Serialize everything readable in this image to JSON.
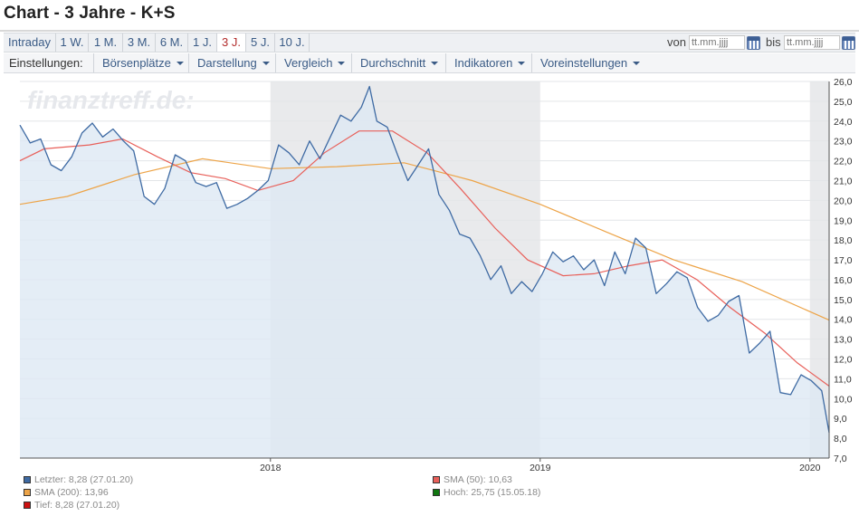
{
  "page": {
    "title": "Chart - 3 Jahre - K+S"
  },
  "toolbar": {
    "ranges": [
      "Intraday",
      "1 W.",
      "1 M.",
      "3 M.",
      "6 M.",
      "1 J.",
      "3 J.",
      "5 J.",
      "10 J."
    ],
    "active_range": "3 J.",
    "from_label": "von",
    "to_label": "bis",
    "from_placeholder": "tt.mm.jjjj",
    "to_placeholder": "tt.mm.jjjj"
  },
  "settings": {
    "label": "Einstellungen:",
    "menus": [
      "Börsenplätze",
      "Darstellung",
      "Vergleich",
      "Durchschnitt",
      "Indikatoren",
      "Voreinstellungen"
    ]
  },
  "colors": {
    "price_line": "#3e6aa3",
    "price_fill": "#dde8f4",
    "sma50": "#e8605a",
    "sma200": "#eda448",
    "shade": "#e9eaec",
    "low_marker": "#cc1111",
    "high_marker": "#117711"
  },
  "chart_data": {
    "type": "line",
    "watermark": "finanztreff.de:",
    "ylim": [
      7.0,
      26.0
    ],
    "y_ticks": [
      "26,0",
      "25,0",
      "24,0",
      "23,0",
      "22,0",
      "21,0",
      "20,0",
      "19,0",
      "18,0",
      "17,0",
      "16,0",
      "15,0",
      "14,0",
      "13,0",
      "12,0",
      "11,0",
      "10,0",
      "9,0",
      "8,0",
      "7,0"
    ],
    "x_domain": [
      "2017-01-27",
      "2020-01-27"
    ],
    "x_ticks": [
      {
        "label": "2018",
        "date": "2018-01-01"
      },
      {
        "label": "2019",
        "date": "2019-01-01"
      },
      {
        "label": "2020",
        "date": "2020-01-01"
      }
    ],
    "series": [
      {
        "name": "Letzter",
        "points": [
          [
            "2017-01-27",
            23.8
          ],
          [
            "2017-02-10",
            22.9
          ],
          [
            "2017-02-24",
            23.1
          ],
          [
            "2017-03-10",
            21.8
          ],
          [
            "2017-03-24",
            21.5
          ],
          [
            "2017-04-07",
            22.2
          ],
          [
            "2017-04-21",
            23.4
          ],
          [
            "2017-05-05",
            23.9
          ],
          [
            "2017-05-19",
            23.2
          ],
          [
            "2017-06-02",
            23.6
          ],
          [
            "2017-06-16",
            23.0
          ],
          [
            "2017-06-30",
            22.5
          ],
          [
            "2017-07-14",
            20.2
          ],
          [
            "2017-07-28",
            19.8
          ],
          [
            "2017-08-11",
            20.6
          ],
          [
            "2017-08-25",
            22.3
          ],
          [
            "2017-09-08",
            22.0
          ],
          [
            "2017-09-22",
            20.9
          ],
          [
            "2017-10-06",
            20.7
          ],
          [
            "2017-10-20",
            20.9
          ],
          [
            "2017-11-03",
            19.6
          ],
          [
            "2017-11-17",
            19.8
          ],
          [
            "2017-12-01",
            20.1
          ],
          [
            "2017-12-15",
            20.5
          ],
          [
            "2017-12-29",
            21.0
          ],
          [
            "2018-01-12",
            22.8
          ],
          [
            "2018-01-26",
            22.4
          ],
          [
            "2018-02-09",
            21.8
          ],
          [
            "2018-02-23",
            23.0
          ],
          [
            "2018-03-09",
            22.1
          ],
          [
            "2018-03-23",
            23.2
          ],
          [
            "2018-04-06",
            24.3
          ],
          [
            "2018-04-20",
            24.0
          ],
          [
            "2018-05-04",
            24.7
          ],
          [
            "2018-05-15",
            25.75
          ],
          [
            "2018-05-25",
            24.0
          ],
          [
            "2018-06-08",
            23.7
          ],
          [
            "2018-06-22",
            22.3
          ],
          [
            "2018-07-06",
            21.0
          ],
          [
            "2018-07-20",
            21.8
          ],
          [
            "2018-08-03",
            22.6
          ],
          [
            "2018-08-17",
            20.3
          ],
          [
            "2018-08-31",
            19.5
          ],
          [
            "2018-09-14",
            18.3
          ],
          [
            "2018-09-28",
            18.1
          ],
          [
            "2018-10-12",
            17.2
          ],
          [
            "2018-10-26",
            16.0
          ],
          [
            "2018-11-09",
            16.7
          ],
          [
            "2018-11-23",
            15.3
          ],
          [
            "2018-12-07",
            15.9
          ],
          [
            "2018-12-21",
            15.4
          ],
          [
            "2019-01-04",
            16.3
          ],
          [
            "2019-01-18",
            17.4
          ],
          [
            "2019-02-01",
            16.9
          ],
          [
            "2019-02-15",
            17.2
          ],
          [
            "2019-03-01",
            16.5
          ],
          [
            "2019-03-15",
            17.0
          ],
          [
            "2019-03-29",
            15.7
          ],
          [
            "2019-04-12",
            17.4
          ],
          [
            "2019-04-26",
            16.3
          ],
          [
            "2019-05-10",
            18.1
          ],
          [
            "2019-05-24",
            17.6
          ],
          [
            "2019-06-07",
            15.3
          ],
          [
            "2019-06-21",
            15.8
          ],
          [
            "2019-07-05",
            16.4
          ],
          [
            "2019-07-19",
            16.1
          ],
          [
            "2019-08-02",
            14.6
          ],
          [
            "2019-08-16",
            13.9
          ],
          [
            "2019-08-30",
            14.2
          ],
          [
            "2019-09-13",
            14.9
          ],
          [
            "2019-09-27",
            15.2
          ],
          [
            "2019-10-11",
            12.3
          ],
          [
            "2019-10-25",
            12.8
          ],
          [
            "2019-11-08",
            13.4
          ],
          [
            "2019-11-22",
            10.3
          ],
          [
            "2019-12-06",
            10.2
          ],
          [
            "2019-12-20",
            11.2
          ],
          [
            "2020-01-03",
            10.9
          ],
          [
            "2020-01-17",
            10.4
          ],
          [
            "2020-01-27",
            8.28
          ]
        ]
      },
      {
        "name": "SMA (50)",
        "points": [
          [
            "2017-01-27",
            22.0
          ],
          [
            "2017-03-01",
            22.6
          ],
          [
            "2017-05-01",
            22.8
          ],
          [
            "2017-06-15",
            23.1
          ],
          [
            "2017-08-01",
            22.2
          ],
          [
            "2017-09-15",
            21.4
          ],
          [
            "2017-11-01",
            21.1
          ],
          [
            "2017-12-15",
            20.5
          ],
          [
            "2018-02-01",
            21.0
          ],
          [
            "2018-03-15",
            22.4
          ],
          [
            "2018-05-01",
            23.5
          ],
          [
            "2018-06-15",
            23.5
          ],
          [
            "2018-08-01",
            22.4
          ],
          [
            "2018-09-15",
            20.6
          ],
          [
            "2018-11-01",
            18.6
          ],
          [
            "2018-12-15",
            17.0
          ],
          [
            "2019-02-01",
            16.2
          ],
          [
            "2019-03-15",
            16.3
          ],
          [
            "2019-05-01",
            16.7
          ],
          [
            "2019-06-15",
            17.0
          ],
          [
            "2019-08-01",
            16.0
          ],
          [
            "2019-09-15",
            14.6
          ],
          [
            "2019-11-01",
            13.3
          ],
          [
            "2019-12-15",
            11.8
          ],
          [
            "2020-01-27",
            10.63
          ]
        ]
      },
      {
        "name": "SMA (200)",
        "points": [
          [
            "2017-01-27",
            19.8
          ],
          [
            "2017-04-01",
            20.2
          ],
          [
            "2017-07-01",
            21.3
          ],
          [
            "2017-10-01",
            22.1
          ],
          [
            "2018-01-01",
            21.6
          ],
          [
            "2018-04-01",
            21.7
          ],
          [
            "2018-07-01",
            21.9
          ],
          [
            "2018-10-01",
            21.0
          ],
          [
            "2019-01-01",
            19.8
          ],
          [
            "2019-04-01",
            18.4
          ],
          [
            "2019-07-01",
            17.0
          ],
          [
            "2019-10-01",
            15.9
          ],
          [
            "2020-01-27",
            13.96
          ]
        ]
      }
    ],
    "legend": [
      {
        "text": "Letzter: 8,28 (27.01.20)",
        "color": "#3e6aa3"
      },
      {
        "text": "SMA (50): 10,63",
        "color": "#e8605a"
      },
      {
        "text": "SMA (200): 13,96",
        "color": "#eda448"
      },
      {
        "text": "Hoch: 25,75 (15.05.18)",
        "color": "#117711"
      },
      {
        "text": "Tief: 8,28 (27.01.20)",
        "color": "#cc1111"
      }
    ]
  }
}
